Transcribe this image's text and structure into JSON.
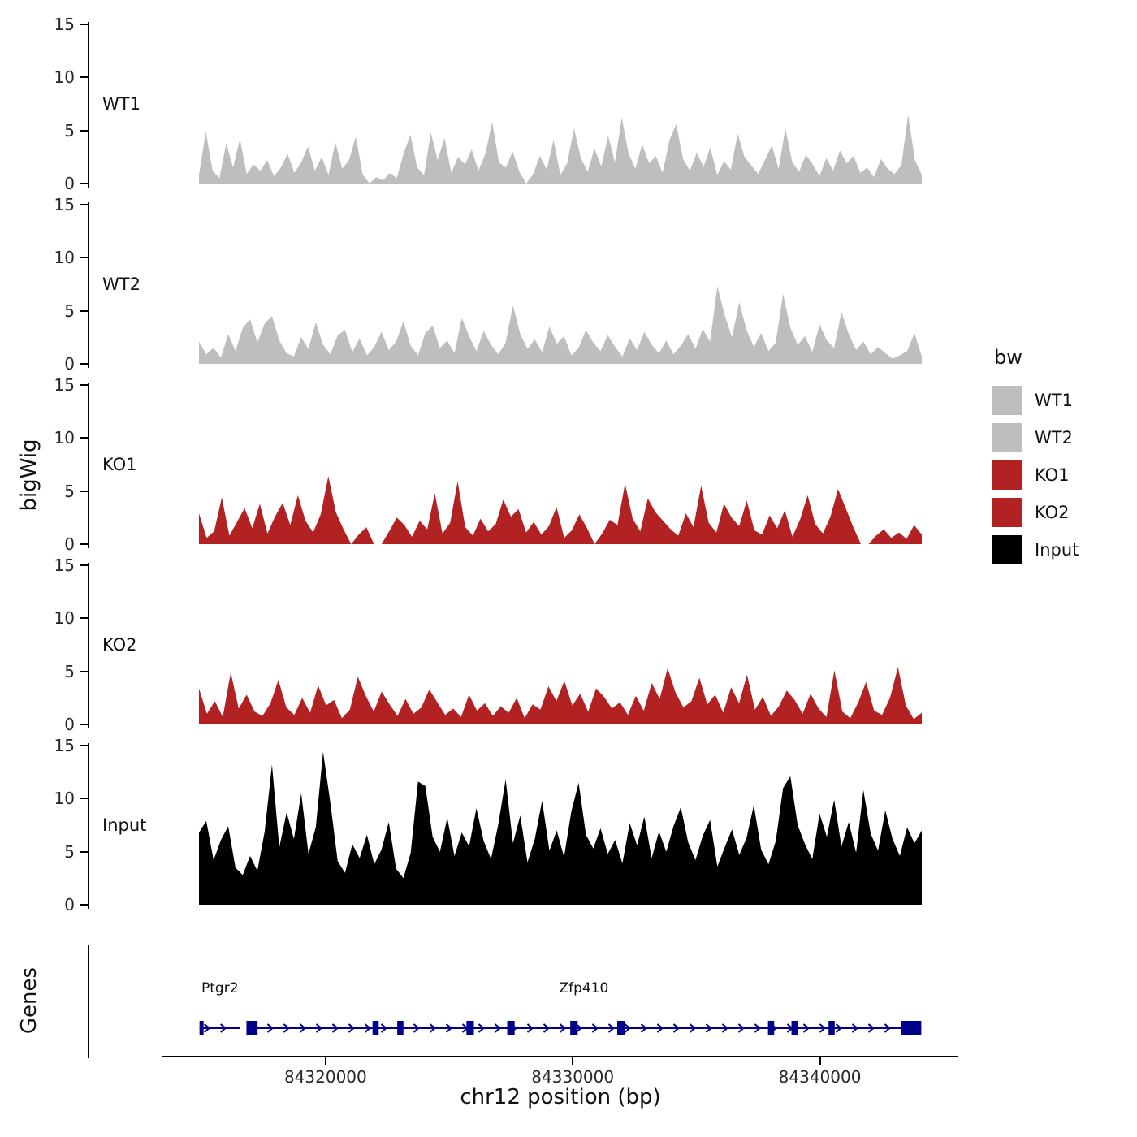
{
  "chart_data": {
    "type": "area",
    "title": "",
    "xlabel": "chr12 position (bp)",
    "ylabel": "bigWig",
    "genes_panel_label": "Genes",
    "legend_title": "bw",
    "x_range": [
      84313400,
      84345600
    ],
    "data_x_range": [
      84314900,
      84344100
    ],
    "x_ticks": [
      84320000,
      84330000,
      84340000
    ],
    "x_tick_labels": [
      "84320000",
      "84330000",
      "84340000"
    ],
    "y_ticks": [
      0,
      5,
      10,
      15
    ],
    "ylim": [
      0,
      15
    ],
    "grid": false,
    "legend_position": "right",
    "colors": {
      "WT": "#bebebe",
      "KO": "#b22222",
      "Input": "#000000",
      "gene": "#00008b",
      "axis": "#000000"
    },
    "legend": [
      {
        "label": "WT1",
        "color": "#bebebe"
      },
      {
        "label": "WT2",
        "color": "#bebebe"
      },
      {
        "label": "KO1",
        "color": "#b22222"
      },
      {
        "label": "KO2",
        "color": "#b22222"
      },
      {
        "label": "Input",
        "color": "#000000"
      }
    ],
    "tracks": [
      {
        "name": "WT1",
        "color": "#bebebe",
        "values": [
          0.8,
          4.9,
          1.2,
          0.5,
          3.8,
          1.5,
          4.2,
          0.9,
          1.8,
          1.2,
          2.2,
          0.7,
          1.5,
          2.8,
          1.0,
          2.0,
          3.5,
          1.2,
          2.5,
          0.8,
          3.9,
          1.4,
          2.2,
          4.4,
          0.9,
          0.0,
          0.6,
          0.3,
          1.0,
          0.5,
          2.8,
          4.6,
          1.5,
          0.8,
          4.8,
          2.2,
          4.3,
          1.0,
          2.5,
          1.8,
          3.2,
          1.2,
          2.8,
          5.8,
          2.0,
          1.5,
          3.0,
          1.1,
          0.0,
          0.9,
          2.6,
          1.3,
          4.1,
          0.8,
          1.9,
          5.2,
          2.4,
          1.1,
          3.3,
          1.6,
          4.5,
          2.0,
          6.2,
          2.8,
          1.4,
          3.7,
          1.9,
          2.6,
          1.0,
          4.1,
          5.6,
          2.3,
          1.2,
          2.9,
          1.6,
          3.4,
          0.8,
          2.1,
          1.3,
          4.7,
          2.5,
          1.7,
          0.9,
          2.2,
          3.6,
          1.4,
          5.2,
          2.0,
          1.1,
          2.7,
          1.8,
          0.7,
          2.4,
          1.2,
          3.1,
          1.9,
          2.6,
          1.0,
          1.5,
          0.6,
          2.3,
          1.4,
          0.9,
          1.7,
          6.5,
          2.2,
          0.8
        ]
      },
      {
        "name": "WT2",
        "color": "#bebebe",
        "values": [
          2.1,
          0.9,
          1.5,
          0.6,
          2.8,
          1.2,
          3.4,
          4.2,
          2.0,
          3.8,
          4.5,
          2.2,
          1.0,
          0.7,
          2.5,
          1.4,
          3.9,
          1.8,
          0.9,
          2.7,
          3.2,
          1.1,
          2.4,
          0.8,
          1.6,
          3.0,
          1.3,
          2.1,
          4.0,
          1.7,
          0.8,
          2.9,
          3.6,
          1.5,
          2.2,
          1.0,
          4.3,
          2.6,
          1.2,
          3.1,
          1.8,
          0.9,
          2.0,
          5.5,
          2.8,
          1.4,
          2.3,
          1.1,
          3.5,
          1.9,
          2.6,
          0.8,
          1.5,
          3.2,
          2.0,
          1.2,
          2.7,
          1.6,
          0.7,
          2.4,
          1.3,
          3.0,
          1.8,
          1.0,
          2.2,
          0.9,
          1.7,
          2.8,
          1.4,
          3.3,
          2.1,
          7.3,
          4.6,
          2.5,
          5.8,
          3.2,
          1.6,
          2.9,
          1.2,
          2.0,
          6.6,
          3.4,
          1.8,
          2.6,
          1.1,
          3.7,
          2.2,
          1.5,
          4.9,
          2.8,
          1.3,
          2.1,
          0.9,
          1.6,
          1.0,
          0.5,
          0.8,
          1.2,
          2.9,
          0.7
        ]
      },
      {
        "name": "KO1",
        "color": "#b22222",
        "values": [
          2.9,
          0.6,
          1.2,
          4.4,
          0.8,
          2.1,
          3.4,
          1.5,
          3.8,
          1.0,
          2.6,
          3.9,
          1.8,
          4.6,
          2.2,
          1.1,
          2.8,
          6.4,
          3.0,
          1.4,
          0.0,
          0.9,
          1.6,
          0.0,
          0.0,
          1.2,
          2.5,
          1.8,
          0.7,
          2.2,
          1.4,
          4.8,
          1.0,
          2.0,
          5.9,
          1.6,
          0.8,
          2.4,
          1.2,
          1.9,
          4.2,
          2.6,
          3.3,
          1.1,
          2.1,
          0.9,
          1.7,
          3.5,
          0.6,
          1.3,
          2.8,
          1.5,
          0.0,
          1.0,
          2.3,
          1.8,
          5.7,
          2.4,
          1.2,
          4.3,
          3.0,
          2.2,
          1.4,
          0.8,
          2.9,
          1.6,
          5.5,
          2.0,
          1.1,
          3.8,
          2.5,
          1.7,
          4.1,
          1.3,
          0.9,
          2.7,
          1.5,
          3.2,
          0.7,
          2.3,
          4.6,
          1.9,
          1.0,
          2.6,
          5.2,
          3.4,
          1.6,
          0.0,
          0.0,
          0.8,
          1.4,
          0.6,
          1.1,
          0.5,
          1.8,
          0.9
        ]
      },
      {
        "name": "KO2",
        "color": "#b22222",
        "values": [
          3.4,
          1.0,
          2.2,
          0.7,
          4.9,
          1.5,
          2.8,
          1.2,
          0.8,
          2.0,
          4.2,
          1.6,
          0.9,
          2.5,
          1.1,
          3.7,
          1.8,
          2.3,
          0.6,
          1.4,
          4.5,
          2.7,
          1.2,
          3.1,
          1.9,
          0.8,
          2.4,
          1.0,
          1.6,
          3.3,
          2.1,
          0.9,
          1.5,
          0.7,
          2.8,
          1.3,
          2.0,
          0.8,
          1.7,
          1.1,
          2.5,
          0.6,
          1.9,
          1.4,
          3.6,
          2.2,
          4.1,
          1.8,
          2.9,
          1.2,
          3.4,
          2.6,
          1.5,
          2.1,
          0.9,
          2.7,
          1.3,
          3.9,
          2.4,
          5.3,
          3.0,
          1.6,
          2.2,
          4.4,
          1.9,
          2.8,
          1.1,
          3.5,
          2.0,
          4.7,
          1.4,
          2.6,
          0.8,
          1.7,
          3.2,
          2.3,
          1.0,
          2.9,
          1.5,
          0.7,
          5.1,
          1.2,
          0.6,
          2.1,
          4.0,
          1.3,
          0.9,
          2.5,
          5.4,
          1.8,
          0.5,
          1.1
        ]
      },
      {
        "name": "Input",
        "color": "#000000",
        "values": [
          6.8,
          7.9,
          4.2,
          6.1,
          7.4,
          3.5,
          2.8,
          4.6,
          3.2,
          6.9,
          13.2,
          5.4,
          8.7,
          6.2,
          10.5,
          4.8,
          7.3,
          14.4,
          9.6,
          4.1,
          3.0,
          5.7,
          4.4,
          6.6,
          3.8,
          5.2,
          7.8,
          3.4,
          2.5,
          4.9,
          11.6,
          11.2,
          6.4,
          5.0,
          8.2,
          4.6,
          6.8,
          5.5,
          9.1,
          6.0,
          4.3,
          7.6,
          11.8,
          5.8,
          8.4,
          4.0,
          6.2,
          9.8,
          5.1,
          7.0,
          4.5,
          8.8,
          11.5,
          6.6,
          5.3,
          7.2,
          4.8,
          6.1,
          3.9,
          7.7,
          5.6,
          8.3,
          4.4,
          6.9,
          5.0,
          7.4,
          9.2,
          5.9,
          4.2,
          6.5,
          8.0,
          3.6,
          5.4,
          7.1,
          4.7,
          6.3,
          9.4,
          5.2,
          3.8,
          6.0,
          11.0,
          12.1,
          7.5,
          5.7,
          4.3,
          8.6,
          6.4,
          9.9,
          5.5,
          7.8,
          4.9,
          10.8,
          6.7,
          5.1,
          8.9,
          6.2,
          4.6,
          7.3,
          5.8,
          7.0
        ]
      }
    ],
    "genes": [
      {
        "name": "Ptgr2",
        "start": 84314900,
        "end": 84316550,
        "strand": "+",
        "exons": [
          [
            84314900,
            84315060
          ]
        ]
      },
      {
        "name": "Zfp410",
        "start": 84316800,
        "end": 84344100,
        "strand": "+",
        "exons": [
          [
            84316800,
            84317250
          ],
          [
            84321900,
            84322150
          ],
          [
            84322900,
            84323150
          ],
          [
            84325700,
            84326000
          ],
          [
            84327350,
            84327650
          ],
          [
            84329900,
            84330200
          ],
          [
            84331800,
            84332100
          ],
          [
            84337900,
            84338150
          ],
          [
            84338850,
            84339100
          ],
          [
            84340350,
            84340600
          ],
          [
            84343300,
            84344100
          ]
        ]
      }
    ]
  }
}
